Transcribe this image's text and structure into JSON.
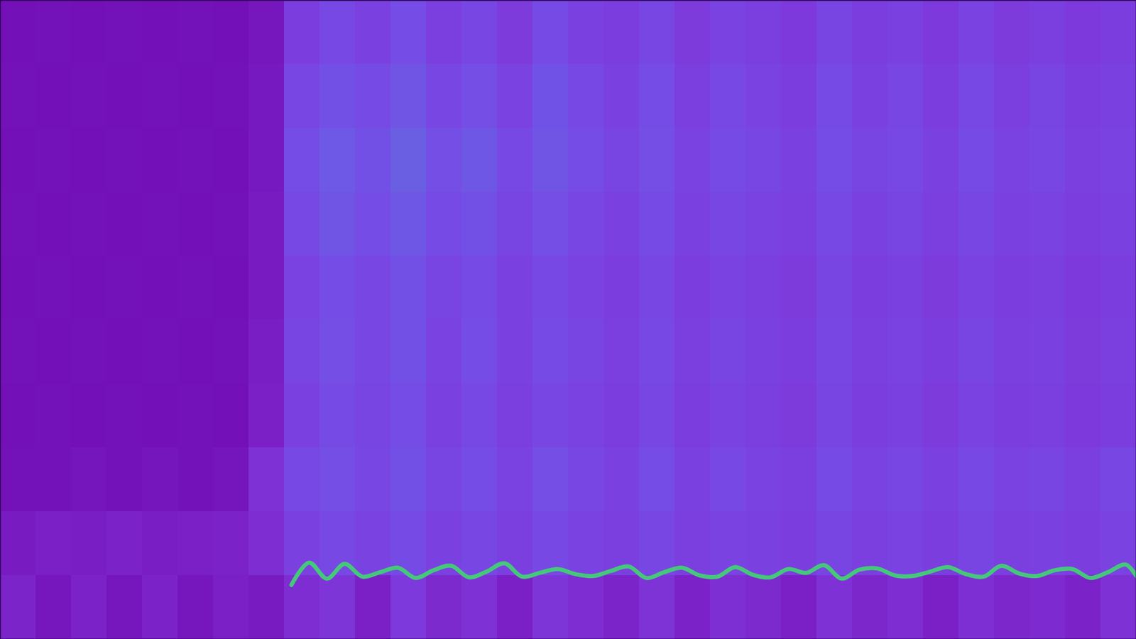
{
  "chart_data": {
    "type": "heatmap",
    "tick_labels": false,
    "xlim": [
      0,
      32
    ],
    "ylim": [
      0,
      100
    ],
    "zlim": [
      0,
      1
    ],
    "cells": [
      [
        0.07,
        0.08,
        0.07,
        0.08,
        0.07,
        0.08,
        0.07,
        0.1,
        0.28,
        0.34,
        0.3,
        0.36,
        0.29,
        0.33,
        0.27,
        0.35,
        0.3,
        0.28,
        0.33,
        0.27,
        0.31,
        0.29,
        0.26,
        0.32,
        0.28,
        0.3,
        0.26,
        0.31,
        0.27,
        0.29,
        0.26,
        0.28
      ],
      [
        0.08,
        0.07,
        0.08,
        0.07,
        0.08,
        0.07,
        0.08,
        0.11,
        0.33,
        0.38,
        0.35,
        0.4,
        0.33,
        0.37,
        0.31,
        0.39,
        0.34,
        0.3,
        0.36,
        0.29,
        0.34,
        0.31,
        0.28,
        0.35,
        0.3,
        0.33,
        0.28,
        0.34,
        0.29,
        0.32,
        0.28,
        0.3
      ],
      [
        0.07,
        0.08,
        0.07,
        0.08,
        0.07,
        0.08,
        0.07,
        0.11,
        0.36,
        0.42,
        0.38,
        0.44,
        0.37,
        0.41,
        0.34,
        0.4,
        0.36,
        0.32,
        0.37,
        0.31,
        0.35,
        0.33,
        0.3,
        0.36,
        0.32,
        0.34,
        0.3,
        0.35,
        0.31,
        0.33,
        0.29,
        0.31
      ],
      [
        0.08,
        0.07,
        0.08,
        0.07,
        0.08,
        0.07,
        0.08,
        0.12,
        0.34,
        0.4,
        0.36,
        0.41,
        0.35,
        0.38,
        0.32,
        0.37,
        0.33,
        0.3,
        0.35,
        0.3,
        0.33,
        0.31,
        0.29,
        0.34,
        0.3,
        0.32,
        0.29,
        0.33,
        0.3,
        0.31,
        0.28,
        0.3
      ],
      [
        0.07,
        0.08,
        0.07,
        0.08,
        0.07,
        0.08,
        0.07,
        0.12,
        0.31,
        0.36,
        0.33,
        0.38,
        0.32,
        0.35,
        0.3,
        0.34,
        0.31,
        0.28,
        0.33,
        0.28,
        0.31,
        0.29,
        0.27,
        0.32,
        0.28,
        0.3,
        0.27,
        0.31,
        0.28,
        0.29,
        0.26,
        0.28
      ],
      [
        0.08,
        0.07,
        0.08,
        0.07,
        0.08,
        0.07,
        0.08,
        0.13,
        0.32,
        0.37,
        0.33,
        0.38,
        0.31,
        0.36,
        0.3,
        0.35,
        0.32,
        0.29,
        0.34,
        0.29,
        0.32,
        0.3,
        0.28,
        0.33,
        0.29,
        0.31,
        0.28,
        0.32,
        0.29,
        0.3,
        0.27,
        0.29
      ],
      [
        0.07,
        0.08,
        0.07,
        0.08,
        0.07,
        0.08,
        0.07,
        0.14,
        0.3,
        0.35,
        0.32,
        0.36,
        0.3,
        0.34,
        0.29,
        0.33,
        0.31,
        0.28,
        0.33,
        0.28,
        0.31,
        0.29,
        0.27,
        0.32,
        0.28,
        0.3,
        0.27,
        0.31,
        0.28,
        0.29,
        0.26,
        0.28
      ],
      [
        0.08,
        0.08,
        0.09,
        0.08,
        0.09,
        0.08,
        0.09,
        0.22,
        0.34,
        0.37,
        0.33,
        0.38,
        0.32,
        0.36,
        0.31,
        0.37,
        0.33,
        0.3,
        0.36,
        0.3,
        0.34,
        0.31,
        0.29,
        0.35,
        0.31,
        0.33,
        0.3,
        0.34,
        0.31,
        0.32,
        0.29,
        0.33
      ],
      [
        0.12,
        0.14,
        0.13,
        0.15,
        0.13,
        0.14,
        0.15,
        0.2,
        0.3,
        0.34,
        0.31,
        0.35,
        0.3,
        0.33,
        0.29,
        0.34,
        0.31,
        0.29,
        0.33,
        0.29,
        0.31,
        0.3,
        0.28,
        0.32,
        0.29,
        0.31,
        0.28,
        0.32,
        0.29,
        0.3,
        0.28,
        0.31
      ],
      [
        0.16,
        0.1,
        0.15,
        0.1,
        0.15,
        0.1,
        0.14,
        0.12,
        0.2,
        0.24,
        0.14,
        0.26,
        0.18,
        0.22,
        0.14,
        0.24,
        0.2,
        0.16,
        0.23,
        0.15,
        0.21,
        0.18,
        0.14,
        0.22,
        0.17,
        0.2,
        0.14,
        0.21,
        0.17,
        0.19,
        0.15,
        0.22
      ]
    ],
    "line": {
      "type": "line",
      "color": "#45c87a",
      "x": [
        8.2,
        8.7,
        9.2,
        9.7,
        10.2,
        10.7,
        11.2,
        11.7,
        12.2,
        12.7,
        13.2,
        13.7,
        14.2,
        14.7,
        15.2,
        15.7,
        16.2,
        16.7,
        17.2,
        17.7,
        18.2,
        18.7,
        19.2,
        19.7,
        20.2,
        20.7,
        21.2,
        21.7,
        22.2,
        22.7,
        23.2,
        23.7,
        24.2,
        24.7,
        25.2,
        25.7,
        26.2,
        26.7,
        27.2,
        27.7,
        28.2,
        28.7,
        29.2,
        29.7,
        30.2,
        30.7,
        31.2,
        31.7,
        32
      ],
      "y": [
        8.5,
        12.0,
        9.5,
        11.8,
        9.8,
        10.5,
        11.2,
        9.6,
        10.8,
        11.5,
        9.7,
        10.6,
        11.9,
        9.8,
        10.4,
        11.0,
        10.2,
        9.9,
        10.7,
        11.4,
        9.6,
        10.5,
        11.2,
        10.0,
        9.8,
        11.3,
        10.1,
        9.7,
        11.0,
        10.4,
        11.6,
        9.5,
        10.9,
        11.1,
        10.0,
        9.9,
        10.6,
        11.3,
        10.2,
        9.8,
        11.5,
        10.3,
        9.9,
        10.8,
        11.0,
        9.6,
        10.5,
        11.7,
        9.9
      ]
    }
  }
}
